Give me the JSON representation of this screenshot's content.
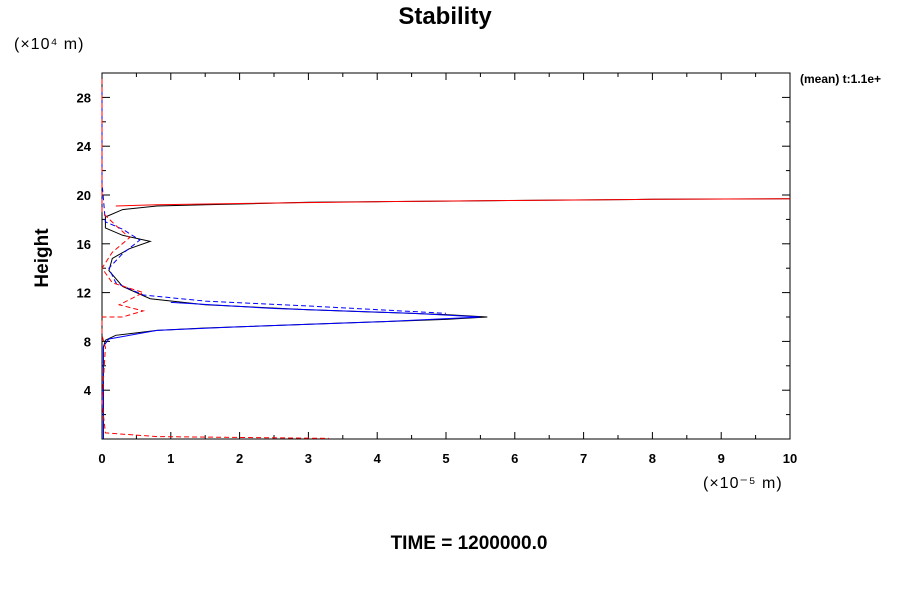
{
  "chart_data": {
    "type": "line",
    "title": "Stability",
    "ylabel": "Height",
    "xlabel": "",
    "y_unit": "(×10⁴ m)",
    "x_unit": "(×10⁻⁵ m)",
    "annotation": "(mean) t:1.1e+",
    "footer": "TIME = 1200000.0",
    "xlim": [
      0,
      10
    ],
    "ylim": [
      0,
      30
    ],
    "x_ticks": [
      0,
      1,
      2,
      3,
      4,
      5,
      6,
      7,
      8,
      9,
      10
    ],
    "x_tick_labels": [
      "0",
      "1",
      "2",
      "3",
      "4",
      "5",
      "6",
      "7",
      "8",
      "9",
      "10"
    ],
    "y_ticks": [
      4,
      8,
      12,
      16,
      20,
      24,
      28
    ],
    "y_tick_labels": [
      "4",
      "8",
      "12",
      "16",
      "20",
      "24",
      "28"
    ],
    "series": [
      {
        "color": "#000000",
        "dash": false,
        "points": [
          [
            0.02,
            0
          ],
          [
            0.02,
            7.5
          ],
          [
            0.05,
            8.1
          ],
          [
            0.2,
            8.5
          ],
          [
            0.8,
            8.9
          ],
          [
            1.5,
            9.1
          ],
          [
            3.0,
            9.4
          ],
          [
            5.0,
            9.8
          ],
          [
            5.6,
            10.0
          ],
          [
            5.0,
            10.2
          ],
          [
            3.0,
            10.6
          ],
          [
            1.5,
            11.0
          ],
          [
            0.7,
            11.5
          ],
          [
            0.3,
            12.5
          ],
          [
            0.1,
            13.8
          ],
          [
            0.15,
            14.8
          ],
          [
            0.4,
            15.6
          ],
          [
            0.7,
            16.2
          ],
          [
            0.3,
            16.7
          ],
          [
            0.05,
            17.3
          ],
          [
            0.05,
            18.2
          ],
          [
            0.3,
            18.8
          ],
          [
            0.8,
            19.1
          ],
          [
            1.5,
            19.2
          ],
          [
            3.0,
            19.4
          ],
          [
            5.0,
            19.5
          ],
          [
            8.0,
            19.65
          ],
          [
            10.0,
            19.7
          ]
        ]
      },
      {
        "color": "#0000ff",
        "dash": false,
        "points": [
          [
            0.02,
            0
          ],
          [
            0.02,
            7.6
          ],
          [
            0.1,
            8.2
          ],
          [
            0.8,
            8.9
          ],
          [
            2.0,
            9.2
          ],
          [
            4.0,
            9.6
          ],
          [
            5.5,
            10.0
          ],
          [
            4.5,
            10.3
          ],
          [
            2.5,
            10.7
          ],
          [
            1.0,
            11.2
          ]
        ]
      },
      {
        "color": "#ff0000",
        "dash": false,
        "points": [
          [
            0.2,
            19.1
          ],
          [
            0.8,
            19.2
          ],
          [
            2.0,
            19.3
          ],
          [
            4.0,
            19.45
          ],
          [
            6.0,
            19.55
          ],
          [
            8.0,
            19.65
          ],
          [
            10.0,
            19.7
          ]
        ]
      },
      {
        "color": "#0000ff",
        "dash": true,
        "points": [
          [
            0.0,
            28.5
          ],
          [
            0.0,
            21.0
          ],
          [
            0.05,
            17.8
          ],
          [
            0.3,
            17.2
          ],
          [
            0.55,
            16.3
          ],
          [
            0.3,
            15.2
          ],
          [
            0.1,
            14.0
          ],
          [
            0.2,
            12.8
          ],
          [
            0.6,
            11.8
          ],
          [
            1.5,
            11.3
          ],
          [
            3.0,
            10.9
          ],
          [
            5.0,
            10.3
          ]
        ]
      },
      {
        "color": "#ff0000",
        "dash": true,
        "points": [
          [
            0.0,
            29.5
          ],
          [
            0.0,
            18.6
          ],
          [
            0.2,
            17.5
          ],
          [
            0.4,
            16.5
          ],
          [
            0.15,
            15.3
          ],
          [
            0.0,
            14.0
          ],
          [
            0.15,
            12.8
          ],
          [
            0.6,
            12.0
          ],
          [
            0.25,
            11.0
          ],
          [
            0.6,
            10.5
          ],
          [
            0.3,
            10.0
          ],
          [
            0.0,
            10.0
          ],
          [
            0.0,
            8.5
          ],
          [
            0.05,
            7.5
          ],
          [
            0.0,
            3.0
          ],
          [
            0.05,
            0.5
          ],
          [
            0.8,
            0.2
          ],
          [
            2.5,
            0.1
          ],
          [
            3.3,
            0.05
          ]
        ]
      }
    ]
  }
}
